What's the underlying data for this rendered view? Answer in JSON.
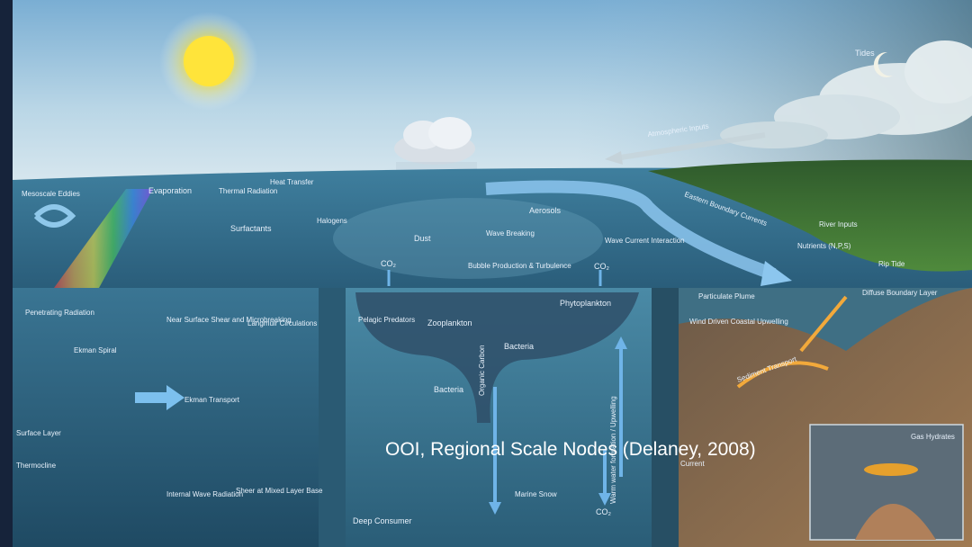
{
  "caption": "OOI, Regional Scale Nodes (Delaney, 2008)",
  "labels": {
    "tides": "Tides",
    "atmospheric_inputs": "Atmospheric Inputs",
    "evaporation": "Evaporation",
    "thermal_radiation": "Thermal Radiation",
    "heat_transfer": "Heat Transfer",
    "mesoscale_eddies": "Mesoscale Eddies",
    "surfactants": "Surfactants",
    "halogens": "Halogens",
    "aerosols": "Aerosols",
    "dust": "Dust",
    "wave_breaking": "Wave Breaking",
    "bubble_production": "Bubble Production & Turbulence",
    "wave_current_interaction": "Wave Current Interaction",
    "eastern_boundary_currents": "Eastern Boundary Currents",
    "river_inputs": "River Inputs",
    "nutrients": "Nutrients (N,P,S)",
    "rip_tide": "Rip Tide",
    "penetrating_radiation": "Penetrating Radiation",
    "near_surface_shear": "Near Surface Shear and Microbreaking",
    "langmuir_circulations": "Langmuir Circulations",
    "ekman_spiral": "Ekman Spiral",
    "ekman_transport": "Ekman Transport",
    "surface_layer": "Surface Layer",
    "thermocline": "Thermocline",
    "internal_wave_radiation": "Internal Wave Radiation",
    "sheer_mixed_layer": "Sheer at Mixed Layer Base",
    "co2_left": "CO₂",
    "co2_right": "CO₂",
    "co2_bottom": "CO₂",
    "phytoplankton": "Phytoplankton",
    "zooplankton": "Zooplankton",
    "pelagic_predators": "Pelagic Predators",
    "bacteria_upper": "Bacteria",
    "bacteria_lower": "Bacteria",
    "organic_carbon": "Organic Carbon",
    "water_formation": "Warm water formation / Upwelling",
    "marine_snow": "Marine Snow",
    "deep_consumer": "Deep Consumer",
    "particulate_plume": "Particulate Plume",
    "wind_driven_upwelling": "Wind Driven Coastal Upwelling",
    "diffuse_boundary_layer": "Diffuse Boundary Layer",
    "sediment_transport": "Sediment Transport",
    "current": "Current",
    "gas_hydrates": "Gas Hydrates"
  },
  "colors": {
    "sky_top": "#7fb3d6",
    "ocean_surface": "#2f6b8c",
    "ocean_deep": "#2c5c78",
    "sun": "#ffe24a",
    "arrow_blue": "#6fb4e8",
    "land_green": "#3d7a35",
    "seafloor": "#8a6a4a"
  }
}
